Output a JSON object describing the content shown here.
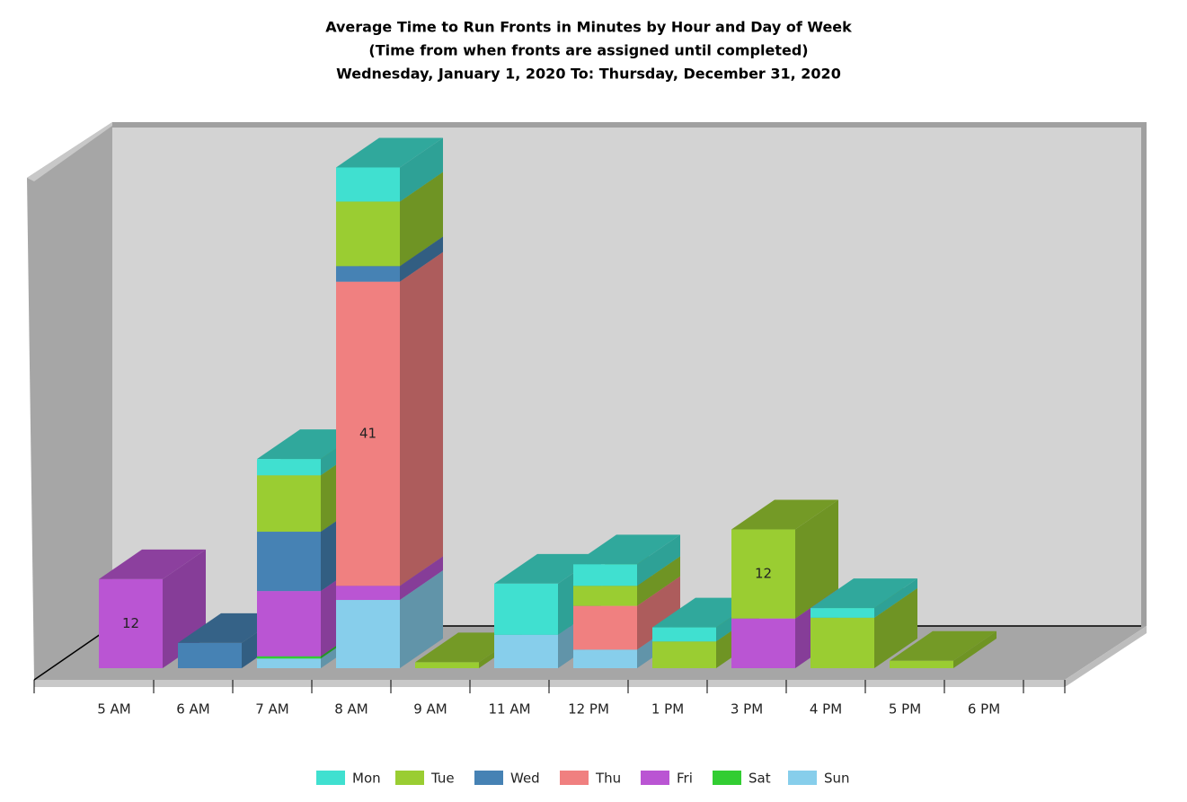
{
  "chart_data": {
    "type": "bar3d_stacked",
    "title": "Average Time to Run Fronts in Minutes by Hour and Day of Week",
    "subtitle": [
      "(Time from when fronts are assigned until completed)",
      "Wednesday, January 1, 2020 To: Thursday, December 31, 2020"
    ],
    "categories": [
      "5 AM",
      "6 AM",
      "7 AM",
      "8 AM",
      "9 AM",
      "11 AM",
      "12 PM",
      "1 PM",
      "3 PM",
      "4 PM",
      "5 PM",
      "6 PM"
    ],
    "ylim": [
      0,
      67
    ],
    "series": [
      {
        "name": "Mon",
        "color": "#40e0d0",
        "values": [
          null,
          null,
          2.2,
          4.6,
          null,
          6.9,
          2.9,
          1.9,
          null,
          1.3,
          null,
          null
        ]
      },
      {
        "name": "Tue",
        "color": "#9acd32",
        "values": [
          null,
          null,
          7.6,
          8.7,
          0.8,
          null,
          2.7,
          3.6,
          12,
          6.8,
          1.0,
          null
        ]
      },
      {
        "name": "Wed",
        "color": "#4682b4",
        "values": [
          null,
          3.4,
          8,
          2.1,
          null,
          null,
          null,
          null,
          null,
          null,
          null,
          null
        ]
      },
      {
        "name": "Thu",
        "color": "#f08080",
        "values": [
          null,
          null,
          null,
          41,
          null,
          null,
          5.9,
          null,
          null,
          null,
          null,
          null
        ]
      },
      {
        "name": "Fri",
        "color": "#ba55d3",
        "values": [
          12,
          null,
          8.8,
          1.9,
          null,
          null,
          null,
          null,
          6.7,
          null,
          null,
          null
        ]
      },
      {
        "name": "Sat",
        "color": "#32cd32",
        "values": [
          null,
          null,
          0.3,
          null,
          null,
          null,
          null,
          null,
          null,
          null,
          null,
          null
        ]
      },
      {
        "name": "Sun",
        "color": "#87ceeb",
        "values": [
          null,
          null,
          1.3,
          9.2,
          null,
          4.5,
          2.5,
          null,
          null,
          null,
          null,
          null
        ]
      }
    ],
    "legend": "bottom"
  }
}
